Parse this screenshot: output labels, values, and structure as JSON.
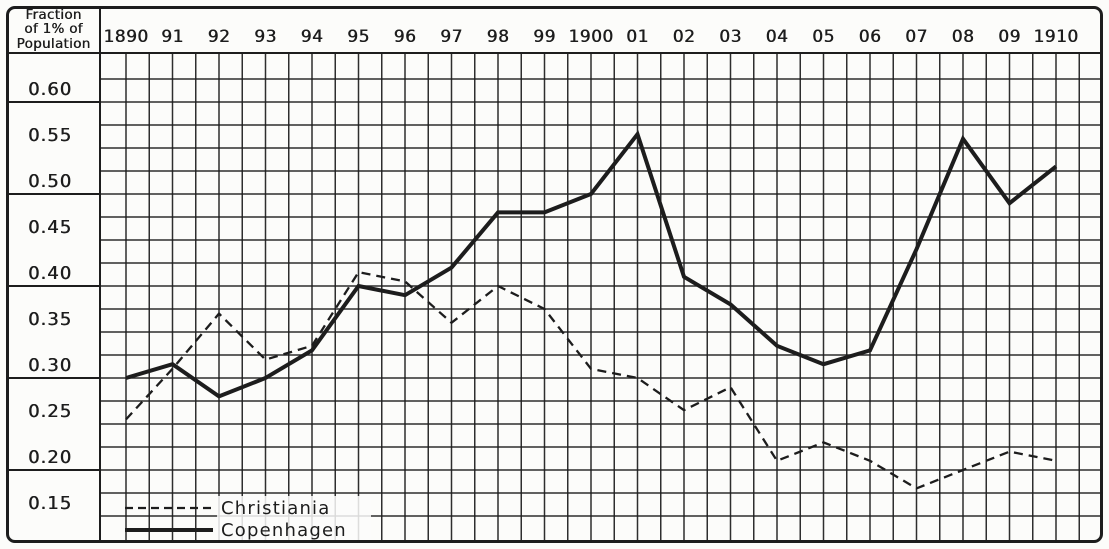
{
  "chart_data": {
    "type": "line",
    "title": "",
    "y_axis_title_lines": [
      "Fraction",
      "of 1% of",
      "Population"
    ],
    "x_tick_labels": [
      "1890",
      "91",
      "92",
      "93",
      "94",
      "95",
      "96",
      "97",
      "98",
      "99",
      "1900",
      "01",
      "02",
      "03",
      "04",
      "05",
      "06",
      "07",
      "08",
      "09",
      "1910"
    ],
    "y_tick_labels": [
      "0.60",
      "0.55",
      "0.50",
      "0.45",
      "0.40",
      "0.35",
      "0.30",
      "0.25",
      "0.20",
      "0.15"
    ],
    "ylim": [
      0.125,
      0.65
    ],
    "y_minor_step": 0.025,
    "x_minor_step_years": 0.5,
    "grid": "on",
    "legend_position": "bottom-left",
    "series": [
      {
        "name": "Christiania",
        "style": "dashed",
        "values": [
          0.255,
          0.31,
          0.37,
          0.32,
          0.335,
          0.415,
          0.405,
          0.36,
          0.4,
          0.375,
          0.31,
          0.3,
          0.265,
          0.29,
          0.21,
          0.23,
          0.21,
          0.18,
          0.2,
          0.22,
          0.21
        ]
      },
      {
        "name": "Copenhagen",
        "style": "solid",
        "values": [
          0.3,
          0.315,
          0.28,
          0.3,
          0.33,
          0.4,
          0.39,
          0.42,
          0.48,
          0.48,
          0.5,
          0.565,
          0.41,
          0.38,
          0.335,
          0.315,
          0.33,
          0.44,
          0.56,
          0.49,
          0.53
        ]
      }
    ],
    "colors": {
      "ink": "#1d1d1d",
      "paper": "#fcfcfa"
    }
  }
}
